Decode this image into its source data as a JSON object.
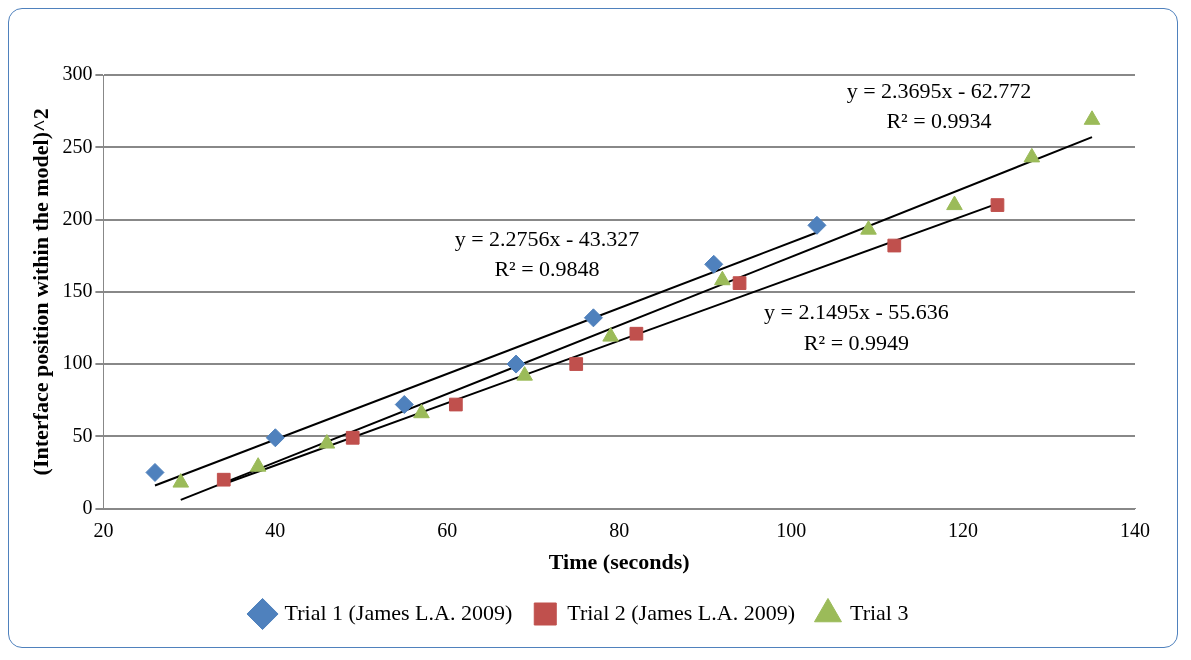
{
  "chart_data": {
    "type": "scatter",
    "xlabel": "Time (seconds)",
    "ylabel": "(Interface position within the model)^2",
    "xlim": [
      20,
      140
    ],
    "xticks": [
      20,
      40,
      60,
      80,
      100,
      120,
      140
    ],
    "ylim": [
      0,
      300
    ],
    "yticks": [
      0,
      50,
      100,
      150,
      200,
      250,
      300
    ],
    "grid": "y",
    "legend": "bottom",
    "series": [
      {
        "name": "Trial 1 (James L.A. 2009)",
        "color": "#4f81bd",
        "marker": "diamond",
        "x": [
          26,
          40,
          55,
          68,
          77,
          91,
          103
        ],
        "values": [
          25,
          49,
          72,
          100,
          132,
          169,
          196
        ]
      },
      {
        "name": "Trial 2 (James L.A. 2009)",
        "color": "#c0504d",
        "marker": "square",
        "x": [
          34,
          49,
          61,
          75,
          82,
          94,
          112,
          124
        ],
        "values": [
          20,
          49,
          72,
          100,
          121,
          156,
          182,
          210
        ]
      },
      {
        "name": "Trial 3",
        "color": "#9bbb59",
        "marker": "triangle",
        "x": [
          29,
          38,
          46,
          57,
          69,
          79,
          92,
          109,
          119,
          128,
          135
        ],
        "values": [
          18,
          29,
          45,
          66,
          92,
          119,
          158,
          193,
          210,
          243,
          269
        ]
      },
      {
        "type": "line",
        "color": "#000000",
        "marker": "none",
        "x": [
          26,
          103
        ],
        "values": [
          16,
          191
        ]
      },
      {
        "type": "line",
        "color": "#000000",
        "marker": "none",
        "x": [
          34,
          124
        ],
        "values": [
          17,
          211
        ]
      },
      {
        "type": "line",
        "color": "#000000",
        "marker": "none",
        "x": [
          29,
          135
        ],
        "values": [
          6,
          257
        ]
      }
    ],
    "annotations": [
      "y = 2.2756x - 43.327",
      "R² = 0.9848",
      "y = 2.3695x - 62.772",
      "R² = 0.9934",
      "y = 2.1495x - 55.636",
      "R² = 0.9949"
    ]
  }
}
